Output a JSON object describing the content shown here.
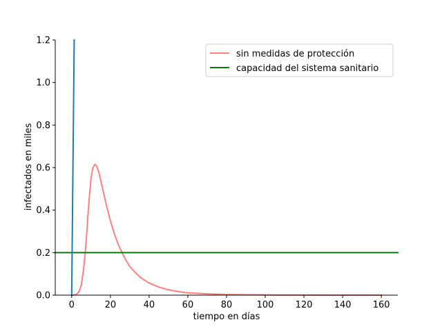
{
  "chart_data": {
    "type": "line",
    "title": "",
    "xlabel": "tiempo en días",
    "ylabel": "infectados en miles",
    "xlim": [
      -8.5,
      168.5
    ],
    "ylim": [
      0,
      1.2
    ],
    "xticks": [
      0,
      20,
      40,
      60,
      80,
      100,
      120,
      140,
      160
    ],
    "xtick_labels": [
      "0",
      "20",
      "40",
      "60",
      "80",
      "100",
      "120",
      "140",
      "160"
    ],
    "yticks": [
      0.0,
      0.2,
      0.4,
      0.6,
      0.8,
      1.0,
      1.2
    ],
    "ytick_labels": [
      "0.0",
      "0.2",
      "0.4",
      "0.6",
      "0.8",
      "1.0",
      "1.2"
    ],
    "grid": false,
    "legend_position": "top-right",
    "series": [
      {
        "name": "sin medidas de protección",
        "color": "#ff7f7f",
        "x": [
          0,
          2,
          3,
          4,
          5,
          6,
          7,
          8,
          9,
          10,
          11,
          12,
          13,
          14,
          15,
          16,
          18,
          20,
          22,
          24,
          26,
          28,
          30,
          33,
          36,
          40,
          45,
          50,
          55,
          60,
          70,
          80,
          90,
          100,
          120,
          140,
          160
        ],
        "y": [
          0.0,
          0.002,
          0.008,
          0.02,
          0.05,
          0.11,
          0.2,
          0.32,
          0.45,
          0.55,
          0.6,
          0.615,
          0.605,
          0.58,
          0.54,
          0.5,
          0.42,
          0.35,
          0.29,
          0.24,
          0.2,
          0.165,
          0.135,
          0.105,
          0.08,
          0.057,
          0.038,
          0.025,
          0.017,
          0.011,
          0.006,
          0.003,
          0.002,
          0.001,
          0.0005,
          0.0002,
          0.0001
        ]
      },
      {
        "name": "capacidad del sistema sanitario",
        "color": "#008000",
        "x": [
          -8.5,
          168.5
        ],
        "y": [
          0.2,
          0.2
        ]
      },
      {
        "name": "",
        "color": "#1f77b4",
        "x": [
          0,
          1.3
        ],
        "y": [
          0.0,
          1.2
        ]
      }
    ]
  }
}
